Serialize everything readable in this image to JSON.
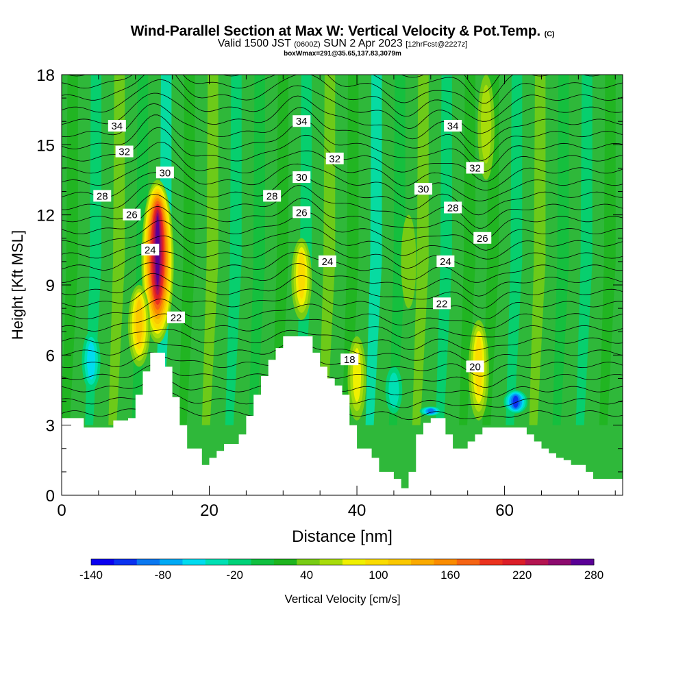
{
  "title": {
    "main": "Wind-Parallel Section at Max W: Vertical Velocity & Pot.Temp.",
    "main_mark": "(C)",
    "valid_prefix": "Valid 1500 JST",
    "valid_z": "(0600Z)",
    "valid_date": "SUN 2 Apr 2023",
    "fcst": "[12hrFcst@2227z]",
    "box": "boxWmax=291@35.65,137.83,3079m"
  },
  "colors": {
    "terrain": "#ffffff",
    "background_field": "#2fb83a"
  },
  "chart_data": {
    "type": "heatmap",
    "xlabel": "Distance [nm]",
    "ylabel": "Height [Kft MSL]",
    "xlim": [
      0,
      76
    ],
    "ylim": [
      0,
      18
    ],
    "x_ticks": [
      "0",
      "20",
      "40",
      "60"
    ],
    "x_tick_values": [
      0,
      20,
      40,
      60
    ],
    "y_ticks": [
      "0",
      "3",
      "6",
      "9",
      "12",
      "15",
      "18"
    ],
    "y_tick_values": [
      0,
      3,
      6,
      9,
      12,
      15,
      18
    ],
    "colorbar": {
      "label": "Vertical Velocity [cm/s]",
      "tick_labels": [
        "-140",
        "-80",
        "-20",
        "40",
        "100",
        "160",
        "220",
        "280"
      ],
      "tick_values": [
        -140,
        -80,
        -20,
        40,
        100,
        160,
        220,
        280
      ],
      "levels": [
        -140,
        -120,
        -100,
        -80,
        -60,
        -40,
        -20,
        0,
        20,
        40,
        60,
        80,
        100,
        120,
        140,
        160,
        180,
        200,
        220,
        240,
        260,
        280
      ],
      "colors": [
        "#0a00f0",
        "#0a32f0",
        "#0a78f0",
        "#00aaf5",
        "#00dcf0",
        "#00e0b4",
        "#00d278",
        "#10c040",
        "#1eb41e",
        "#78cc14",
        "#a8dc0a",
        "#f0f000",
        "#fadc00",
        "#fac800",
        "#faaa00",
        "#fa8c00",
        "#f56414",
        "#eb321e",
        "#dc1e28",
        "#b41450",
        "#8c0a6e",
        "#5a0096"
      ]
    },
    "terrain_profile": {
      "x": [
        0,
        3,
        3,
        7,
        7,
        9,
        9,
        10,
        10,
        11,
        11,
        12,
        12,
        14,
        14,
        15,
        15,
        16,
        16,
        17,
        17,
        19,
        19,
        20,
        20,
        21,
        21,
        22,
        22,
        24,
        24,
        25,
        25,
        26,
        26,
        27,
        27,
        28,
        28,
        29,
        29,
        30,
        30,
        31,
        31,
        34,
        34,
        35,
        35,
        36,
        36,
        37,
        37,
        38,
        38,
        39,
        39,
        40,
        40,
        42,
        42,
        43,
        43,
        45,
        45,
        46,
        46,
        47,
        47,
        48,
        48,
        49,
        49,
        50,
        50,
        52,
        52,
        53,
        53,
        55,
        55,
        56,
        56,
        57,
        57,
        63,
        63,
        64,
        64,
        65,
        65,
        66,
        66,
        67,
        67,
        68,
        68,
        69,
        69,
        71,
        71,
        72,
        72,
        74,
        74,
        76
      ],
      "y": [
        3.3,
        3.3,
        2.9,
        2.9,
        3.2,
        3.2,
        3.3,
        3.3,
        4.3,
        4.3,
        5.3,
        5.3,
        6.1,
        6.1,
        5.5,
        5.5,
        4.2,
        4.2,
        3.0,
        3.0,
        2.0,
        2.0,
        1.3,
        1.3,
        1.6,
        1.6,
        1.9,
        1.9,
        2.2,
        2.2,
        2.6,
        2.6,
        3.4,
        3.4,
        4.3,
        4.3,
        5.1,
        5.1,
        5.8,
        5.8,
        6.3,
        6.3,
        6.8,
        6.8,
        6.8,
        6.8,
        6.1,
        6.1,
        5.5,
        5.5,
        5.0,
        5.0,
        4.7,
        4.7,
        4.3,
        4.3,
        3.0,
        3.0,
        2.0,
        2.0,
        1.6,
        1.6,
        1.0,
        1.0,
        0.7,
        0.7,
        0.3,
        0.3,
        1.0,
        1.0,
        2.6,
        2.6,
        3.1,
        3.1,
        3.3,
        3.3,
        2.6,
        2.6,
        2.0,
        2.0,
        2.3,
        2.3,
        2.6,
        2.6,
        2.9,
        2.9,
        2.6,
        2.6,
        2.3,
        2.3,
        2.0,
        2.0,
        1.8,
        1.8,
        1.6,
        1.6,
        1.5,
        1.5,
        1.3,
        1.3,
        1.0,
        1.0,
        0.7,
        0.7,
        0.7,
        0.7
      ]
    },
    "updraft_cores": [
      {
        "x": 13,
        "y_bottom": 6.5,
        "y_top": 13.5,
        "peak": 280
      },
      {
        "x": 32.5,
        "y_bottom": 7.5,
        "y_top": 11.0,
        "peak": 110
      },
      {
        "x": 40,
        "y_bottom": 3.2,
        "y_top": 6.8,
        "peak": 80
      },
      {
        "x": 56.5,
        "y_bottom": 3.2,
        "y_top": 7.5,
        "peak": 100
      },
      {
        "x": 10.5,
        "y_bottom": 5.5,
        "y_top": 9.0,
        "peak": 120
      },
      {
        "x": 47,
        "y_bottom": 8.0,
        "y_top": 12.0,
        "peak": 50
      },
      {
        "x": 57.5,
        "y_bottom": 13.5,
        "y_top": 18.0,
        "peak": 60
      }
    ],
    "downdraft_cores": [
      {
        "x": 4,
        "y_bottom": 4.5,
        "y_top": 7.0,
        "peak": -60
      },
      {
        "x": 61.5,
        "y_bottom": 3.5,
        "y_top": 4.5,
        "peak": -120
      },
      {
        "x": 50,
        "y_bottom": 3.4,
        "y_top": 3.8,
        "peak": -100
      },
      {
        "x": 45,
        "y_bottom": 3.5,
        "y_top": 5.5,
        "peak": -40
      }
    ],
    "contour_labels": [
      {
        "text": "34",
        "x": 7.5,
        "y": 15.8
      },
      {
        "text": "32",
        "x": 8.5,
        "y": 14.7
      },
      {
        "text": "30",
        "x": 14,
        "y": 13.8
      },
      {
        "text": "28",
        "x": 5.5,
        "y": 12.8
      },
      {
        "text": "26",
        "x": 9.5,
        "y": 12.0
      },
      {
        "text": "24",
        "x": 12,
        "y": 10.5
      },
      {
        "text": "22",
        "x": 15.5,
        "y": 7.6
      },
      {
        "text": "34",
        "x": 32.5,
        "y": 16.0
      },
      {
        "text": "32",
        "x": 37,
        "y": 14.4
      },
      {
        "text": "30",
        "x": 32.5,
        "y": 13.6
      },
      {
        "text": "28",
        "x": 28.5,
        "y": 12.8
      },
      {
        "text": "26",
        "x": 32.5,
        "y": 12.1
      },
      {
        "text": "24",
        "x": 36,
        "y": 10.0
      },
      {
        "text": "18",
        "x": 39,
        "y": 5.8
      },
      {
        "text": "34",
        "x": 53,
        "y": 15.8
      },
      {
        "text": "32",
        "x": 56,
        "y": 14.0
      },
      {
        "text": "30",
        "x": 49,
        "y": 13.1
      },
      {
        "text": "28",
        "x": 53,
        "y": 12.3
      },
      {
        "text": "26",
        "x": 57,
        "y": 11.0
      },
      {
        "text": "24",
        "x": 52,
        "y": 10.0
      },
      {
        "text": "22",
        "x": 51.5,
        "y": 8.2
      },
      {
        "text": "20",
        "x": 56,
        "y": 5.5
      }
    ]
  }
}
